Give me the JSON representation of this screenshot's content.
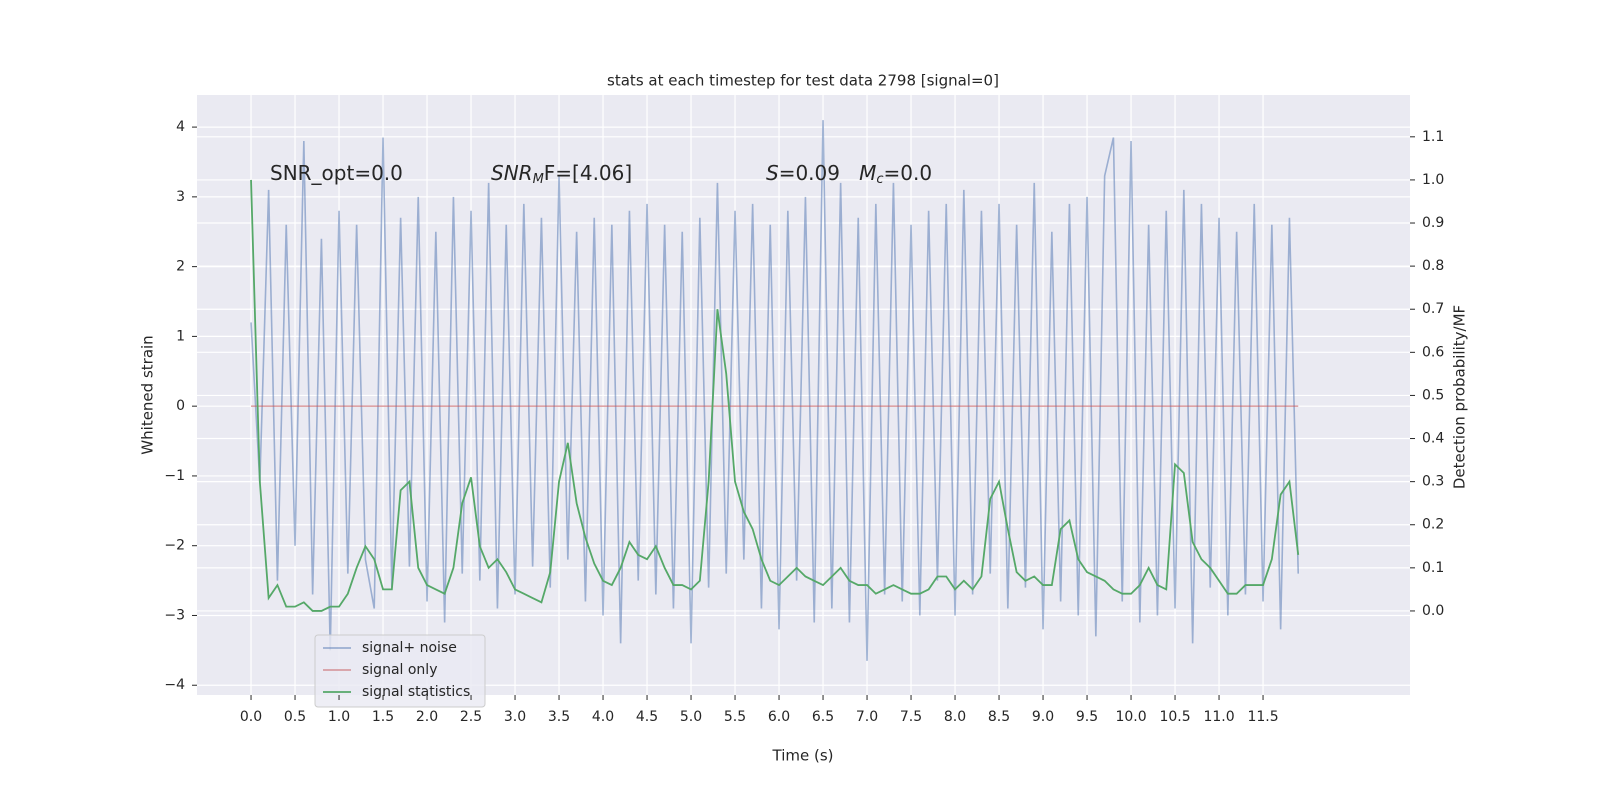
{
  "chart_data": {
    "type": "line",
    "title": "stats at each timestep for test data 2798 [signal=0]",
    "x_label": "Time (s)",
    "y_label": "Whitened strain",
    "y2_label": "Detection probability/MF",
    "grid": true,
    "legend_loc": "lower left",
    "xlim": [
      -0.614,
      13.17
    ],
    "ylim": [
      -4.14,
      4.46
    ],
    "y2lim": [
      -0.195,
      1.197
    ],
    "xticks": [
      {
        "value": 0,
        "label": "0.0"
      },
      {
        "value": 0.5,
        "label": "0.5"
      },
      {
        "value": 1,
        "label": "1.0"
      },
      {
        "value": 1.5,
        "label": "1.5"
      },
      {
        "value": 2,
        "label": "2.0"
      },
      {
        "value": 2.5,
        "label": "2.5"
      },
      {
        "value": 3,
        "label": "3.0"
      },
      {
        "value": 3.5,
        "label": "3.5"
      },
      {
        "value": 4,
        "label": "4.0"
      },
      {
        "value": 4.5,
        "label": "4.5"
      },
      {
        "value": 5,
        "label": "5.0"
      },
      {
        "value": 5.5,
        "label": "5.5"
      },
      {
        "value": 6,
        "label": "6.0"
      },
      {
        "value": 6.5,
        "label": "6.5"
      },
      {
        "value": 7,
        "label": "7.0"
      },
      {
        "value": 7.5,
        "label": "7.5"
      },
      {
        "value": 8,
        "label": "8.0"
      },
      {
        "value": 8.5,
        "label": "8.5"
      },
      {
        "value": 9,
        "label": "9.0"
      },
      {
        "value": 9.5,
        "label": "9.5"
      },
      {
        "value": 10,
        "label": "10.0"
      },
      {
        "value": 10.5,
        "label": "10.5"
      },
      {
        "value": 11,
        "label": "11.0"
      },
      {
        "value": 11.5,
        "label": "11.5"
      }
    ],
    "yticks": [
      {
        "value": -4,
        "label": "−4"
      },
      {
        "value": -3,
        "label": "−3"
      },
      {
        "value": -2,
        "label": "−2"
      },
      {
        "value": -1,
        "label": "−1"
      },
      0,
      1,
      2,
      3,
      4
    ],
    "y2ticks": [
      {
        "value": 0,
        "label": "0.0"
      },
      {
        "value": 0.1,
        "label": "0.1"
      },
      {
        "value": 0.2,
        "label": "0.2"
      },
      {
        "value": 0.3,
        "label": "0.3"
      },
      {
        "value": 0.4,
        "label": "0.4"
      },
      {
        "value": 0.5,
        "label": "0.5"
      },
      {
        "value": 0.6,
        "label": "0.6"
      },
      {
        "value": 0.7,
        "label": "0.7"
      },
      {
        "value": 0.8,
        "label": "0.8"
      },
      {
        "value": 0.9,
        "label": "0.9"
      },
      {
        "value": 1.0,
        "label": "1.0"
      },
      {
        "value": 1.1,
        "label": "1.1"
      }
    ],
    "annotations": [
      {
        "parts": [
          "SNR_opt=0.0"
        ]
      },
      {
        "parts": [
          "SNR",
          "M",
          "F=[4.06]"
        ]
      },
      {
        "parts": [
          "S",
          "=0.09   ",
          "M",
          "c",
          "=0.0"
        ]
      }
    ],
    "x": [
      0,
      0.1,
      0.2,
      0.3,
      0.4,
      0.5,
      0.6,
      0.7,
      0.8,
      0.9,
      1.0,
      1.1,
      1.2,
      1.3,
      1.4,
      1.5,
      1.6,
      1.7,
      1.8,
      1.9,
      2.0,
      2.1,
      2.2,
      2.3,
      2.4,
      2.5,
      2.6,
      2.7,
      2.8,
      2.9,
      3.0,
      3.1,
      3.2,
      3.3,
      3.4,
      3.5,
      3.6,
      3.7,
      3.8,
      3.9,
      4.0,
      4.1,
      4.2,
      4.3,
      4.4,
      4.5,
      4.6,
      4.7,
      4.8,
      4.9,
      5.0,
      5.1,
      5.2,
      5.3,
      5.4,
      5.5,
      5.6,
      5.7,
      5.8,
      5.9,
      6.0,
      6.1,
      6.2,
      6.3,
      6.4,
      6.5,
      6.6,
      6.7,
      6.8,
      6.9,
      7.0,
      7.1,
      7.2,
      7.3,
      7.4,
      7.5,
      7.6,
      7.7,
      7.8,
      7.9,
      8.0,
      8.1,
      8.2,
      8.3,
      8.4,
      8.5,
      8.6,
      8.7,
      8.8,
      8.9,
      9.0,
      9.1,
      9.2,
      9.3,
      9.4,
      9.5,
      9.6,
      9.7,
      9.8,
      9.9,
      10.0,
      10.1,
      10.2,
      10.3,
      10.4,
      10.5,
      10.6,
      10.7,
      10.8,
      10.9,
      11.0,
      11.1,
      11.2,
      11.3,
      11.4,
      11.5,
      11.6,
      11.7,
      11.8,
      11.9
    ],
    "series": [
      {
        "name": "signal+ noise",
        "color": "#4c72b0",
        "opacity": 0.5,
        "values": [
          1.2,
          -1.1,
          3.1,
          -2.5,
          2.6,
          -2.0,
          3.8,
          -2.7,
          2.4,
          -3.5,
          2.8,
          -2.4,
          2.6,
          -2.2,
          -2.9,
          3.85,
          -2.6,
          2.7,
          -2.3,
          3.0,
          -2.8,
          2.5,
          -3.1,
          3.0,
          -2.4,
          2.8,
          -2.5,
          3.2,
          -2.9,
          2.6,
          -2.7,
          2.9,
          -2.3,
          2.7,
          -2.6,
          3.3,
          -2.2,
          2.5,
          -2.8,
          2.7,
          -3.0,
          2.6,
          -3.4,
          2.8,
          -2.5,
          2.9,
          -2.7,
          2.6,
          -2.9,
          2.5,
          -3.4,
          2.7,
          -2.6,
          3.2,
          -2.4,
          2.8,
          -2.2,
          2.9,
          -2.9,
          2.6,
          -3.2,
          2.8,
          -2.5,
          3.0,
          -3.1,
          4.1,
          -2.9,
          3.2,
          -3.1,
          2.7,
          -3.65,
          2.9,
          -2.7,
          3.2,
          -2.8,
          2.6,
          -3.0,
          2.8,
          -2.5,
          2.9,
          -3.0,
          3.1,
          -2.7,
          2.8,
          -2.4,
          2.9,
          -2.9,
          2.6,
          -2.6,
          3.2,
          -3.2,
          2.5,
          -2.8,
          2.9,
          -3.0,
          3.0,
          -3.3,
          3.3,
          3.85,
          -2.8,
          3.8,
          -3.1,
          2.6,
          -3.0,
          2.8,
          -2.9,
          3.1,
          -3.4,
          2.9,
          -2.6,
          2.7,
          -3.0,
          2.5,
          -2.7,
          2.9,
          -2.8,
          2.6,
          -3.2,
          2.7,
          -2.4
        ]
      },
      {
        "name": "signal only",
        "color": "#c44e52",
        "opacity": 0.5,
        "x": [
          0,
          11.9
        ],
        "values": [
          0,
          0
        ]
      },
      {
        "name": "signal statistics",
        "color": "#55a868",
        "opacity": 1,
        "axis": "y2",
        "values": [
          1.0,
          0.3,
          0.03,
          0.06,
          0.01,
          0.01,
          0.02,
          0.0,
          0.0,
          0.01,
          0.01,
          0.04,
          0.1,
          0.15,
          0.12,
          0.05,
          0.05,
          0.28,
          0.3,
          0.1,
          0.06,
          0.05,
          0.04,
          0.1,
          0.25,
          0.31,
          0.15,
          0.1,
          0.12,
          0.09,
          0.05,
          0.04,
          0.03,
          0.02,
          0.09,
          0.3,
          0.39,
          0.25,
          0.17,
          0.11,
          0.07,
          0.06,
          0.1,
          0.16,
          0.13,
          0.12,
          0.15,
          0.1,
          0.06,
          0.06,
          0.05,
          0.07,
          0.3,
          0.7,
          0.55,
          0.3,
          0.23,
          0.19,
          0.12,
          0.07,
          0.06,
          0.08,
          0.1,
          0.08,
          0.07,
          0.06,
          0.08,
          0.1,
          0.07,
          0.06,
          0.06,
          0.04,
          0.05,
          0.06,
          0.05,
          0.04,
          0.04,
          0.05,
          0.08,
          0.08,
          0.05,
          0.07,
          0.05,
          0.08,
          0.26,
          0.3,
          0.19,
          0.09,
          0.07,
          0.08,
          0.06,
          0.06,
          0.19,
          0.21,
          0.12,
          0.09,
          0.08,
          0.07,
          0.05,
          0.04,
          0.04,
          0.06,
          0.1,
          0.06,
          0.05,
          0.34,
          0.32,
          0.16,
          0.12,
          0.1,
          0.07,
          0.04,
          0.04,
          0.06,
          0.06,
          0.06,
          0.12,
          0.27,
          0.3,
          0.13
        ]
      }
    ]
  }
}
